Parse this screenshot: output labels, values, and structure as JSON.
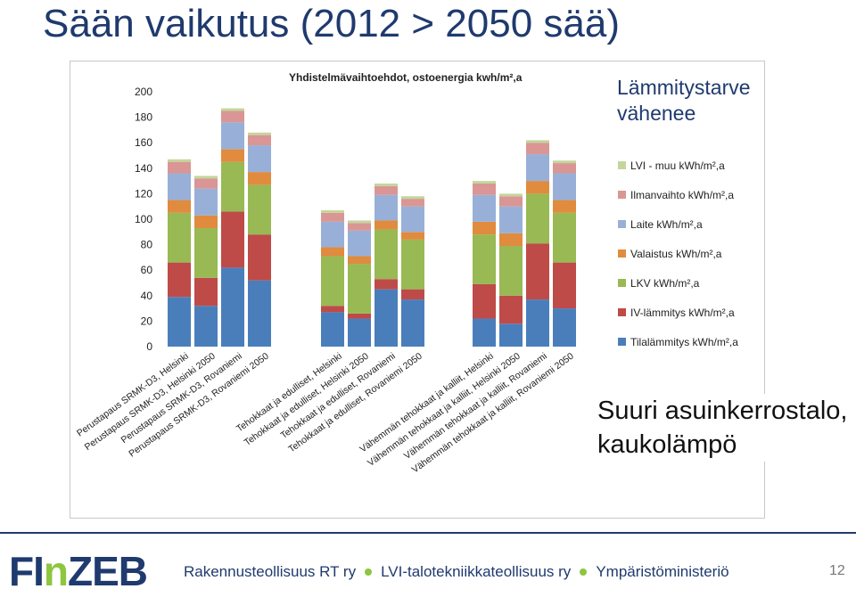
{
  "page": {
    "title": "Sään vaikutus (2012 > 2050 sää)",
    "note_heating": "Lämmitystarve\nvähenee",
    "note_building": "Suuri asuinkerrostalo,\nkaukolämpö",
    "footer": {
      "logo_part1": "FI",
      "logo_part2": "n",
      "logo_part3": "ZEB",
      "orgs": [
        "Rakennusteollisuus RT ry",
        "LVI-talotekniikkateollisuus ry",
        "Ympäristöministeriö"
      ],
      "page_number": "12"
    }
  },
  "chart_data": {
    "type": "bar",
    "stacked": true,
    "title": "Yhdistelmävaihtoehdot, ostoenergia kwh/m²,a",
    "xlabel": "",
    "ylabel": "",
    "ylim": [
      0,
      200
    ],
    "yticks": [
      0,
      20,
      40,
      60,
      80,
      100,
      120,
      140,
      160,
      180,
      200
    ],
    "grid": false,
    "legend_position": "right",
    "groups": [
      [
        0,
        1,
        2,
        3
      ],
      [
        4,
        5,
        6,
        7
      ],
      [
        8,
        9,
        10,
        11
      ]
    ],
    "categories": [
      "Perustapaus SRMK-D3, Helsinki",
      "Perustapaus SRMK-D3, Helsinki 2050",
      "Perustapaus SRMK-D3, Rovaniemi",
      "Perustapaus SRMK-D3, Rovaniemi 2050",
      "Tehokkaat ja edulliset, Helsinki",
      "Tehokkaat ja edulliset, Helsinki 2050",
      "Tehokkaat ja edulliset, Rovaniemi",
      "Tehokkaat ja edulliset, Rovaniemi 2050",
      "Vähemmän tehokkaat ja kalliit, Helsinki",
      "Vähemmän tehokkaat ja kalliit, Helsinki 2050",
      "Vähemmän tehokkaat ja kalliit, Rovaniemi",
      "Vähemmän tehokkaat ja kalliit, Rovaniemi 2050"
    ],
    "series": [
      {
        "name": "Tilalämmitys kWh/m²,a",
        "color": "#4a7ebb",
        "values": [
          39,
          32,
          62,
          52,
          27,
          22,
          45,
          37,
          22,
          18,
          37,
          30
        ]
      },
      {
        "name": "IV-lämmitys kWh/m²,a",
        "color": "#be4b48",
        "values": [
          27,
          22,
          44,
          36,
          5,
          4,
          8,
          8,
          27,
          22,
          44,
          36
        ]
      },
      {
        "name": "LKV kWh/m²,a",
        "color": "#98b954",
        "values": [
          39,
          39,
          39,
          39,
          39,
          39,
          39,
          39,
          39,
          39,
          39,
          39
        ]
      },
      {
        "name": "Valaistus kWh/m²,a",
        "color": "#e08b3e",
        "values": [
          10,
          10,
          10,
          10,
          7,
          6,
          7,
          6,
          10,
          10,
          10,
          10
        ]
      },
      {
        "name": "Laite kWh/m²,a",
        "color": "#98b0d8",
        "values": [
          21,
          21,
          21,
          21,
          20,
          20,
          20,
          20,
          21,
          21,
          21,
          21
        ]
      },
      {
        "name": "Ilmanvaihto kWh/m²,a",
        "color": "#d99694",
        "values": [
          9,
          8,
          9,
          8,
          7,
          6,
          7,
          6,
          9,
          8,
          9,
          8
        ]
      },
      {
        "name": "LVI - muu kWh/m²,a",
        "color": "#c3d69b",
        "values": [
          2,
          2,
          2,
          2,
          2,
          2,
          2,
          2,
          2,
          2,
          2,
          2
        ]
      }
    ]
  }
}
